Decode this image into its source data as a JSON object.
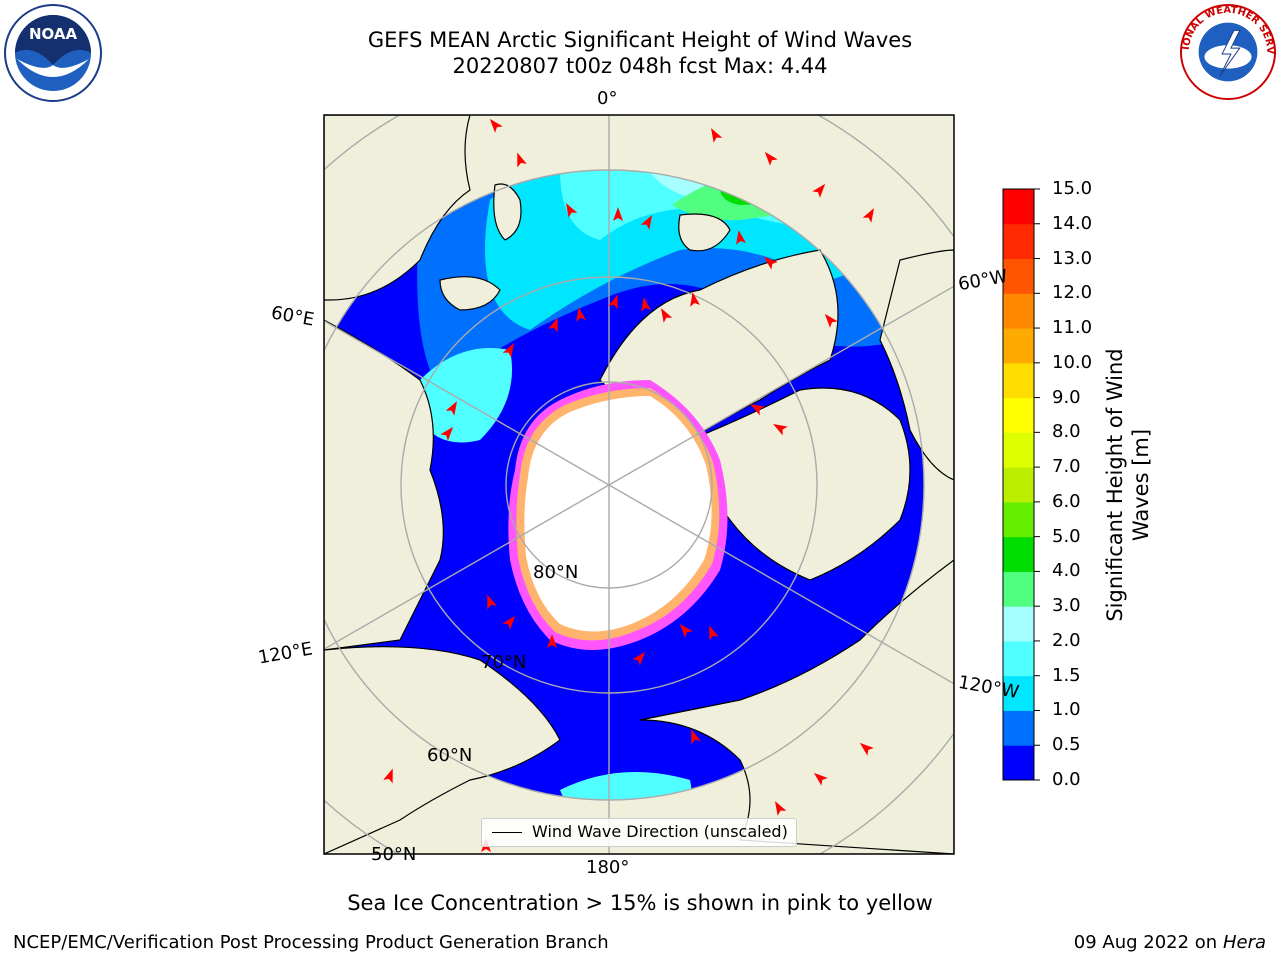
{
  "title": {
    "line1": "GEFS MEAN Arctic Significant Height of Wind Waves",
    "line2": "20220807 t00z 048h fcst   Max: 4.44"
  },
  "map_labels": {
    "meridian_0": "0°",
    "meridian_60e": "60°E",
    "meridian_60w": "60°W",
    "meridian_120e": "120°E",
    "meridian_120w": "120°W",
    "meridian_180": "180°",
    "parallel_80n": "80°N",
    "parallel_70n": "70°N",
    "parallel_60n": "60°N",
    "parallel_50n": "50°N"
  },
  "legend": {
    "label": "Wind Wave Direction (unscaled)"
  },
  "colorbar": {
    "label": "Significant Height of Wind Waves [m]",
    "ticks": [
      "0.0",
      "0.5",
      "1.0",
      "1.5",
      "2.0",
      "3.0",
      "4.0",
      "5.0",
      "6.0",
      "7.0",
      "8.0",
      "9.0",
      "10.0",
      "11.0",
      "12.0",
      "13.0",
      "14.0",
      "15.0"
    ],
    "colors": [
      "#0000ff",
      "#0070ff",
      "#00e6ff",
      "#50ffff",
      "#a6ffff",
      "#50ff80",
      "#00dd00",
      "#66ee00",
      "#bbee00",
      "#ddff00",
      "#ffff00",
      "#ffdd00",
      "#ffaa00",
      "#ff8800",
      "#ff5500",
      "#ff2a00",
      "#ff0000"
    ]
  },
  "colors": {
    "land": "#efefdc",
    "ice": "#ffffff",
    "ice_edge_pink": "#ff55ff",
    "ice_edge_orange": "#ffb46e",
    "arrow": "#ff0000",
    "grid": "#aaaaaa"
  },
  "note": "Sea Ice Concentration > 15% is shown in pink to yellow",
  "footer": {
    "left": "NCEP/EMC/Verification Post Processing Product Generation Branch",
    "right_date": "09 Aug 2022 on",
    "right_host": "Hera"
  },
  "logos": {
    "noaa": "NOAA",
    "nws": "NATIONAL WEATHER SERVICE"
  }
}
